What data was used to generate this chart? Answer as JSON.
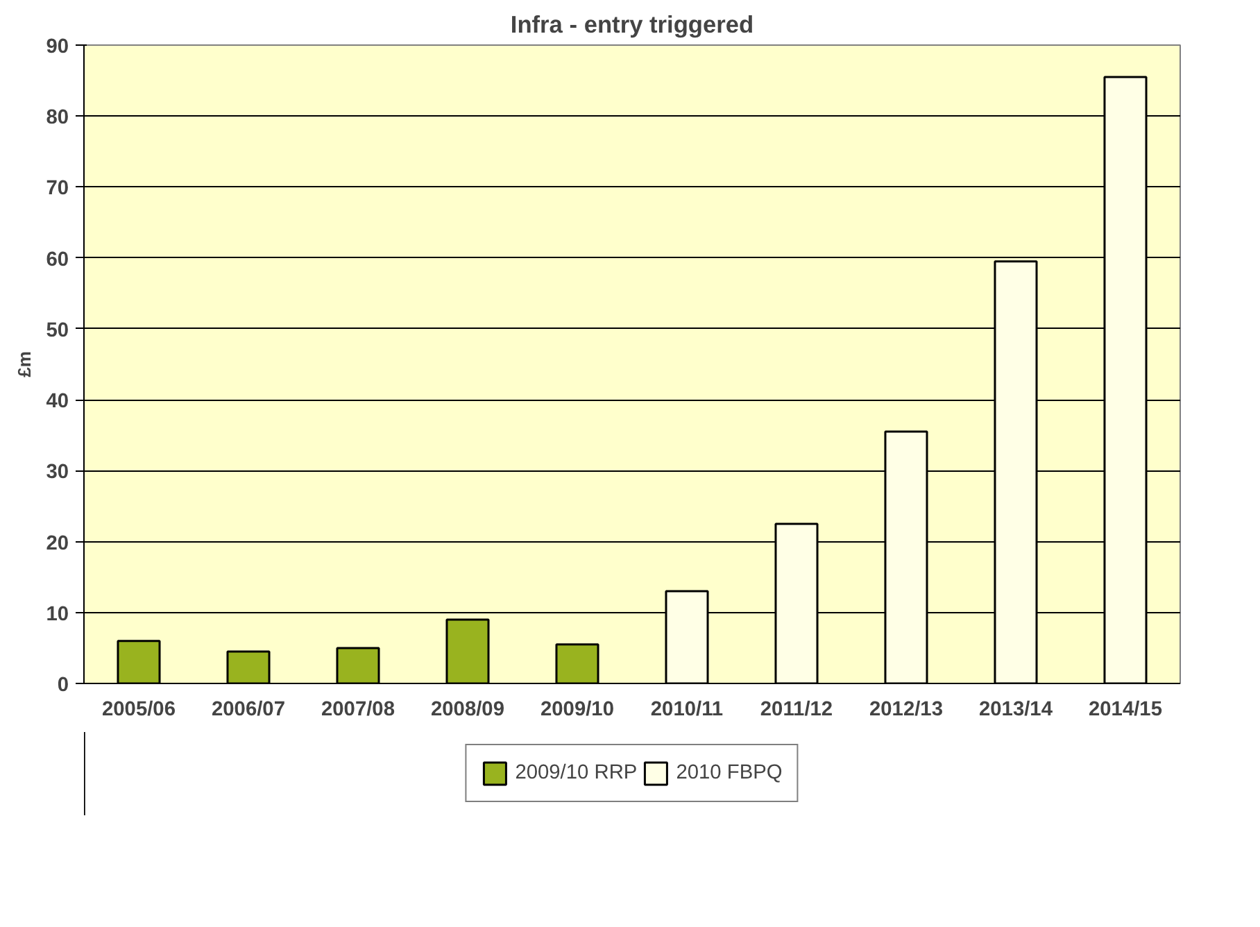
{
  "chart_data": {
    "type": "bar",
    "title": "Infra - entry triggered",
    "ylabel": "£m",
    "categories": [
      "2005/06",
      "2006/07",
      "2007/08",
      "2008/09",
      "2009/10",
      "2010/11",
      "2011/12",
      "2012/13",
      "2013/14",
      "2014/15"
    ],
    "series": [
      {
        "name": "2009/10 RRP",
        "color": "#99b31f",
        "values": [
          6,
          4.5,
          5,
          9,
          5.5,
          null,
          null,
          null,
          null,
          null
        ]
      },
      {
        "name": "2010 FBPQ",
        "color": "#ffffe6",
        "values": [
          null,
          null,
          null,
          null,
          null,
          13,
          22.5,
          35.5,
          59.5,
          85.5
        ]
      }
    ],
    "ylim": [
      0,
      90
    ],
    "yticks": [
      0,
      10,
      20,
      30,
      40,
      50,
      60,
      70,
      80,
      90
    ],
    "grid": "y",
    "legend": "bottom"
  }
}
